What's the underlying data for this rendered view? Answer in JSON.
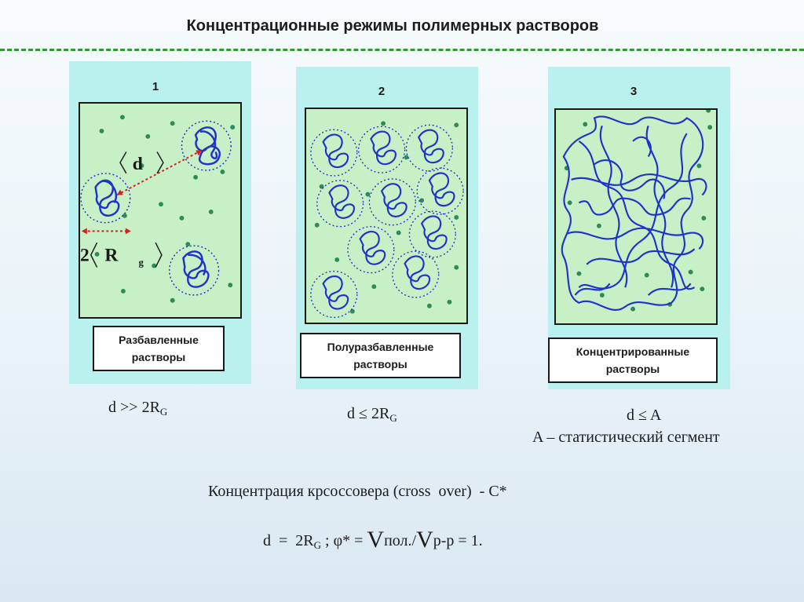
{
  "title": "Концентрационные режимы полимерных растворов",
  "regimes": [
    {
      "number": "1",
      "label": "Разбавленные\nрастворы",
      "condition_lhs": "d",
      "condition_op": ">>",
      "condition_rhs": "2R",
      "condition_sub": "G"
    },
    {
      "number": "2",
      "label": "Полуразбавленные\nрастворы",
      "condition_lhs": "d",
      "condition_op": "≤",
      "condition_rhs": "2R",
      "condition_sub": "G"
    },
    {
      "number": "3",
      "label": "Концентрированные\nрастворы",
      "condition_lhs": "d",
      "condition_op": "≤",
      "condition_rhs": "A",
      "note": "A – статистический сегмент"
    }
  ],
  "diagram1": {
    "distance_symbol": "d",
    "radius_coef": "2",
    "radius_symbol": "R",
    "radius_sub": "g"
  },
  "crossover": {
    "caption": "Концентрация крсоссовера (cross  over)  - C*",
    "f_d": "d  =  2R",
    "f_sub": "G",
    "f_mid": " ; φ* = ",
    "f_v1": "V",
    "f_pol": "пол./",
    "f_v2": "V",
    "f_rest": "р-р = 1."
  },
  "colors": {
    "panel": "#b9f1ef",
    "box": "#c7f0c6",
    "coil": "#1f33c9",
    "dot": "#2e8b57",
    "arrow": "#d91e1e",
    "divider": "#2e9b2e"
  }
}
